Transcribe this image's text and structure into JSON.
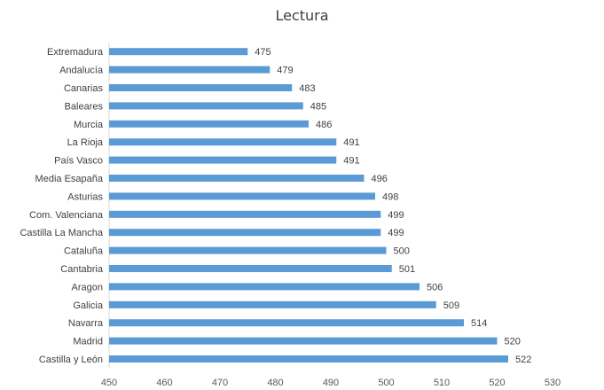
{
  "chart_data": {
    "type": "bar",
    "orientation": "horizontal",
    "title": "Lectura",
    "xlabel": "",
    "ylabel": "",
    "xlim": [
      450,
      530
    ],
    "xticks": [
      450,
      460,
      470,
      480,
      490,
      500,
      510,
      520,
      530
    ],
    "grid": false,
    "legend": "none",
    "bar_color": "#5B9BD5",
    "categories": [
      "Extremadura",
      "Andalucía",
      "Canarias",
      "Baleares",
      "Murcia",
      "La Rioja",
      "País Vasco",
      "Media Esapaña",
      "Asturias",
      "Com. Valenciana",
      "Castilla La Mancha",
      "Cataluña",
      "Cantabria",
      "Aragon",
      "Galicia",
      "Navarra",
      "Madrid",
      "Castilla y León"
    ],
    "values": [
      475,
      479,
      483,
      485,
      486,
      491,
      491,
      496,
      498,
      499,
      499,
      500,
      501,
      506,
      509,
      514,
      520,
      522
    ]
  }
}
